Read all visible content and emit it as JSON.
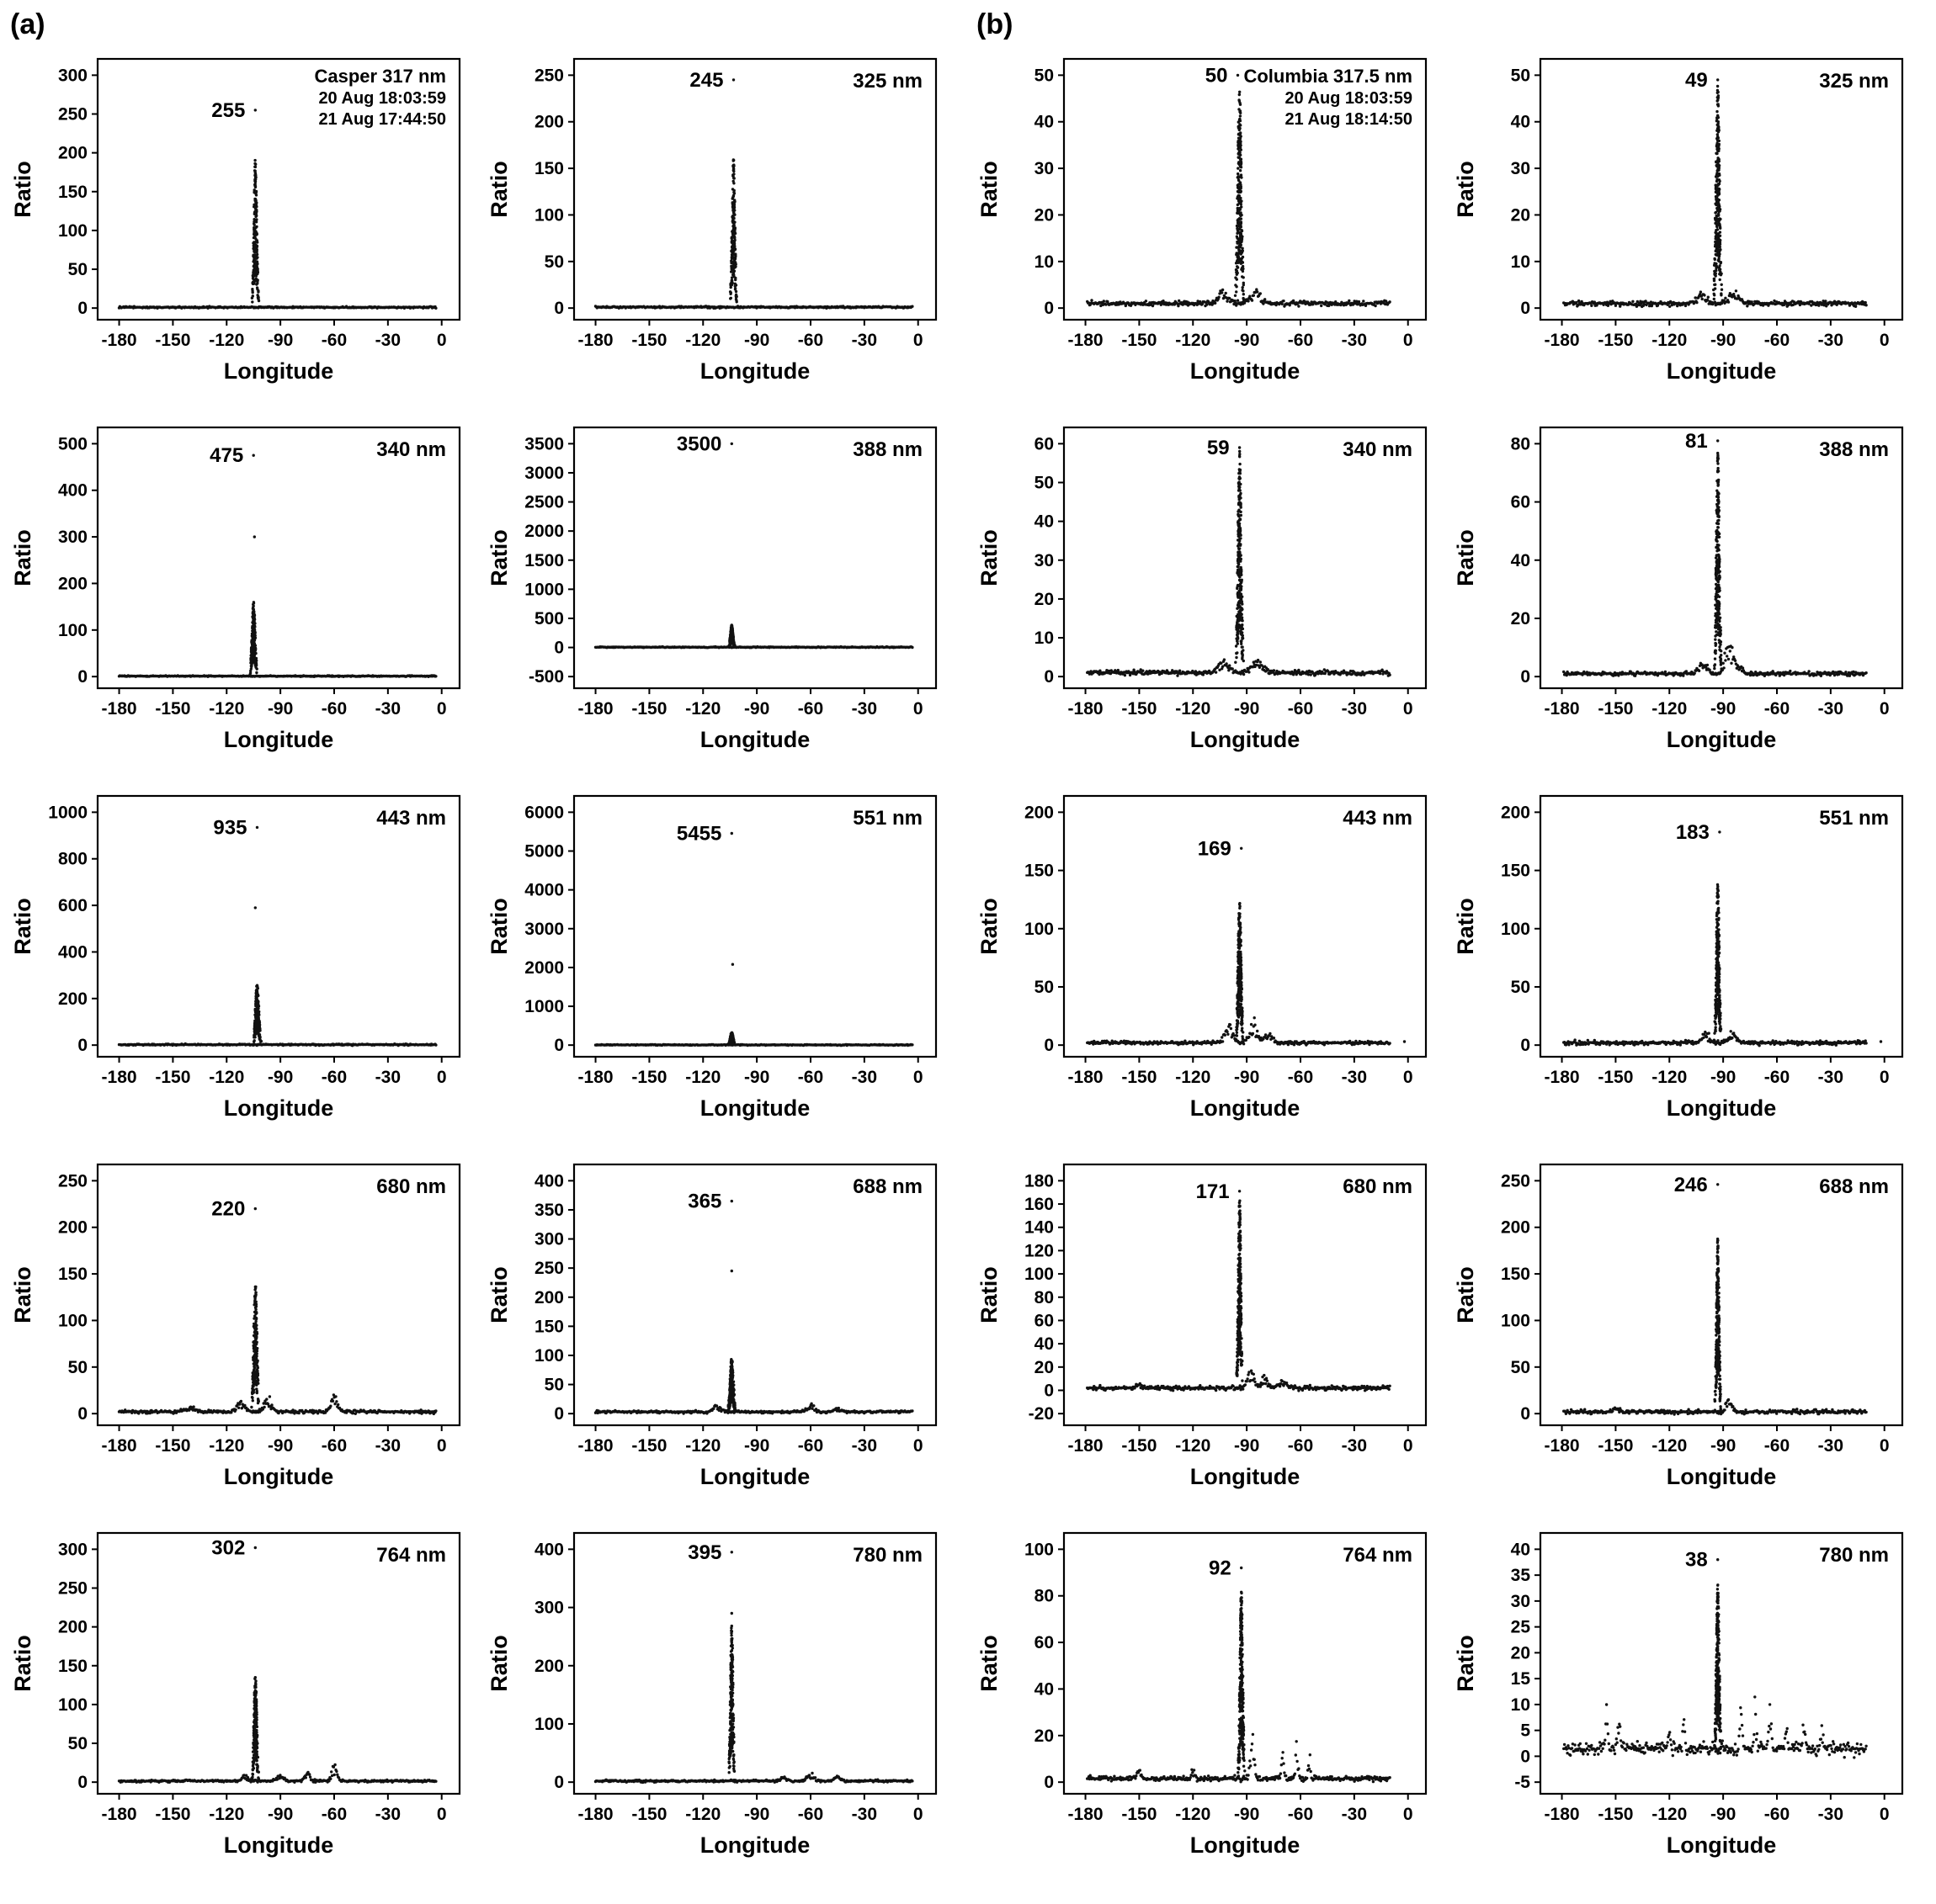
{
  "figure": {
    "panel_a_label": "(a)",
    "panel_b_label": "(b)",
    "xlabel": "Longitude",
    "ylabel": "Ratio",
    "xticks": [
      -180,
      -150,
      -120,
      -90,
      -60,
      -30,
      0
    ],
    "xlim": [
      -192,
      10
    ],
    "point_color": "#111111"
  },
  "chart_data": [
    {
      "panel": "a",
      "type": "scatter",
      "title_lines": [
        "Casper 317 nm",
        "20 Aug 18:03:59",
        "21 Aug 17:44:50"
      ],
      "peak_label": "255",
      "peak": {
        "lon": -104,
        "value": 255
      },
      "spike": {
        "lon": -104,
        "top": 190,
        "width": 2.2
      },
      "baseline": 1,
      "noise": 1.3,
      "yticks": [
        0,
        50,
        100,
        150,
        200,
        250,
        300
      ]
    },
    {
      "panel": "a",
      "type": "scatter",
      "label": "325 nm",
      "peak_label": "245",
      "peak": {
        "lon": -103,
        "value": 245
      },
      "spike": {
        "lon": -103,
        "top": 158,
        "width": 2.2
      },
      "baseline": 1,
      "noise": 1.2,
      "yticks": [
        0,
        50,
        100,
        150,
        200,
        250
      ]
    },
    {
      "panel": "a",
      "type": "scatter",
      "label": "340 nm",
      "peak_label": "475",
      "peak": {
        "lon": -105,
        "value": 475
      },
      "outliers": [
        {
          "lon": -104.5,
          "value": 300
        }
      ],
      "spike": {
        "lon": -105,
        "top": 160,
        "width": 2.4
      },
      "baseline": 1,
      "noise": 1.5,
      "yticks": [
        0,
        100,
        200,
        300,
        400,
        500
      ]
    },
    {
      "panel": "a",
      "type": "scatter",
      "label": "388 nm",
      "peak_label": "3500",
      "peak": {
        "lon": -104,
        "value": 3500
      },
      "spike": {
        "lon": -104,
        "top": 380,
        "width": 2.0
      },
      "baseline": 5,
      "noise": 10,
      "yticks": [
        -500,
        0,
        500,
        1000,
        1500,
        2000,
        2500,
        3000,
        3500
      ]
    },
    {
      "panel": "a",
      "type": "scatter",
      "label": "443 nm",
      "peak_label": "935",
      "peak": {
        "lon": -103,
        "value": 935
      },
      "outliers": [
        {
          "lon": -104,
          "value": 590
        }
      ],
      "spike": {
        "lon": -103,
        "top": 260,
        "width": 2.6
      },
      "baseline": 2,
      "noise": 4,
      "yticks": [
        0,
        200,
        400,
        600,
        800,
        1000
      ]
    },
    {
      "panel": "a",
      "type": "scatter",
      "label": "551 nm",
      "peak_label": "5455",
      "peak": {
        "lon": -104,
        "value": 5455
      },
      "outliers": [
        {
          "lon": -103.5,
          "value": 2080
        }
      ],
      "spike": {
        "lon": -104,
        "top": 330,
        "width": 2.2
      },
      "baseline": 5,
      "noise": 15,
      "yticks": [
        0,
        1000,
        2000,
        3000,
        4000,
        5000,
        6000
      ]
    },
    {
      "panel": "a",
      "type": "scatter",
      "label": "680 nm",
      "peak_label": "220",
      "peak": {
        "lon": -104,
        "value": 220
      },
      "spike": {
        "lon": -104,
        "top": 138,
        "width": 2.6
      },
      "baseline": 2,
      "noise": 2.5,
      "bumps": [
        {
          "lon": -112,
          "height": 12,
          "width": 3
        },
        {
          "lon": -97,
          "height": 15,
          "width": 3
        },
        {
          "lon": -60,
          "height": 16,
          "width": 2.5
        },
        {
          "lon": -140,
          "height": 5,
          "width": 4
        }
      ],
      "yticks": [
        0,
        50,
        100,
        150,
        200,
        250
      ]
    },
    {
      "panel": "a",
      "type": "scatter",
      "label": "688 nm",
      "peak_label": "365",
      "peak": {
        "lon": -104,
        "value": 365
      },
      "outliers": [
        {
          "lon": -104,
          "value": 245
        }
      ],
      "spike": {
        "lon": -104,
        "top": 95,
        "width": 2.6
      },
      "baseline": 3,
      "noise": 3,
      "bumps": [
        {
          "lon": -112,
          "height": 10,
          "width": 3
        },
        {
          "lon": -60,
          "height": 12,
          "width": 3
        },
        {
          "lon": -45,
          "height": 6,
          "width": 3
        }
      ],
      "yticks": [
        0,
        50,
        100,
        150,
        200,
        250,
        300,
        350,
        400
      ]
    },
    {
      "panel": "a",
      "type": "scatter",
      "label": "764 nm",
      "peak_label": "302",
      "peak": {
        "lon": -104,
        "value": 302
      },
      "spike": {
        "lon": -104,
        "top": 140,
        "width": 2.2
      },
      "baseline": 1.5,
      "noise": 2,
      "bumps": [
        {
          "lon": -110,
          "height": 8,
          "width": 2
        },
        {
          "lon": -90,
          "height": 8,
          "width": 2.5
        },
        {
          "lon": -75,
          "height": 10,
          "width": 2
        },
        {
          "lon": -60,
          "height": 22,
          "width": 1.8
        }
      ],
      "yticks": [
        0,
        50,
        100,
        150,
        200,
        250,
        300
      ]
    },
    {
      "panel": "a",
      "type": "scatter",
      "label": "780 nm",
      "peak_label": "395",
      "peak": {
        "lon": -104,
        "value": 395
      },
      "outliers": [
        {
          "lon": -104,
          "value": 290
        }
      ],
      "spike": {
        "lon": -104,
        "top": 270,
        "width": 2.0
      },
      "baseline": 2,
      "noise": 2.5,
      "bumps": [
        {
          "lon": -75,
          "height": 8,
          "width": 2
        },
        {
          "lon": -60,
          "height": 14,
          "width": 2.5
        },
        {
          "lon": -45,
          "height": 8,
          "width": 2.5
        }
      ],
      "yticks": [
        0,
        100,
        200,
        300,
        400
      ]
    },
    {
      "panel": "b",
      "type": "scatter",
      "title_lines": [
        "Columbia 317.5 nm",
        "20 Aug 18:03:59",
        "21 Aug 18:14:50"
      ],
      "peak_label": "50",
      "peak": {
        "lon": -95,
        "value": 50
      },
      "spike": {
        "lon": -94,
        "top": 46,
        "width": 2.8
      },
      "baseline": 1,
      "noise": 0.7,
      "bumps": [
        {
          "lon": -103,
          "height": 2.5,
          "width": 4
        },
        {
          "lon": -85,
          "height": 2.5,
          "width": 4
        }
      ],
      "yticks": [
        0,
        10,
        20,
        30,
        40,
        50
      ]
    },
    {
      "panel": "b",
      "type": "scatter",
      "label": "325 nm",
      "peak_label": "49",
      "peak": {
        "lon": -93,
        "value": 49
      },
      "spike": {
        "lon": -93,
        "top": 47,
        "width": 2.8
      },
      "baseline": 1,
      "noise": 0.7,
      "bumps": [
        {
          "lon": -102,
          "height": 2,
          "width": 4
        },
        {
          "lon": -84,
          "height": 2.5,
          "width": 4
        }
      ],
      "yticks": [
        0,
        10,
        20,
        30,
        40,
        50
      ]
    },
    {
      "panel": "b",
      "type": "scatter",
      "label": "340 nm",
      "peak_label": "59",
      "peak": {
        "lon": -94,
        "value": 59
      },
      "spike": {
        "lon": -94,
        "top": 57,
        "width": 2.6
      },
      "baseline": 1,
      "noise": 0.8,
      "bumps": [
        {
          "lon": -103,
          "height": 3,
          "width": 4
        },
        {
          "lon": -84,
          "height": 3,
          "width": 5
        }
      ],
      "yticks": [
        0,
        10,
        20,
        30,
        40,
        50,
        60
      ]
    },
    {
      "panel": "b",
      "type": "scatter",
      "label": "388 nm",
      "peak_label": "81",
      "peak": {
        "lon": -93,
        "value": 81
      },
      "spike": {
        "lon": -93,
        "top": 76,
        "width": 2.4
      },
      "baseline": 1,
      "noise": 1,
      "bumps": [
        {
          "lon": -101,
          "height": 5,
          "width": 3
        },
        {
          "lon": -87,
          "height": 12,
          "width": 2.5
        },
        {
          "lon": -82,
          "height": 4,
          "width": 3
        }
      ],
      "yticks": [
        0,
        20,
        40,
        60,
        80
      ]
    },
    {
      "panel": "b",
      "type": "scatter",
      "label": "443 nm",
      "peak_label": "169",
      "peak": {
        "lon": -93,
        "value": 169
      },
      "spike": {
        "lon": -94,
        "top": 122,
        "width": 2.4
      },
      "baseline": 2,
      "noise": 2,
      "bumps": [
        {
          "lon": -100,
          "height": 15,
          "width": 3
        },
        {
          "lon": -86,
          "height": 18,
          "width": 3
        },
        {
          "lon": -78,
          "height": 8,
          "width": 3
        }
      ],
      "outliers": [
        {
          "lon": -2,
          "value": 3
        }
      ],
      "yticks": [
        0,
        50,
        100,
        150,
        200
      ]
    },
    {
      "panel": "b",
      "type": "scatter",
      "label": "551 nm",
      "peak_label": "183",
      "peak": {
        "lon": -92,
        "value": 183
      },
      "spike": {
        "lon": -93,
        "top": 138,
        "width": 2.2
      },
      "baseline": 2,
      "noise": 2.5,
      "bumps": [
        {
          "lon": -100,
          "height": 8,
          "width": 3
        },
        {
          "lon": -85,
          "height": 10,
          "width": 3
        }
      ],
      "outliers": [
        {
          "lon": -2,
          "value": 3
        }
      ],
      "yticks": [
        0,
        50,
        100,
        150,
        200
      ]
    },
    {
      "panel": "b",
      "type": "scatter",
      "label": "680 nm",
      "peak_label": "171",
      "peak": {
        "lon": -94,
        "value": 171
      },
      "spike": {
        "lon": -94,
        "top": 163,
        "width": 2.0
      },
      "baseline": 2,
      "noise": 2.5,
      "bumps": [
        {
          "lon": -88,
          "height": 15,
          "width": 2.5
        },
        {
          "lon": -80,
          "height": 8,
          "width": 3
        },
        {
          "lon": -70,
          "height": 6,
          "width": 3
        },
        {
          "lon": -150,
          "height": 4,
          "width": 2
        }
      ],
      "yticks": [
        -20,
        0,
        20,
        40,
        60,
        80,
        100,
        120,
        140,
        160,
        180
      ]
    },
    {
      "panel": "b",
      "type": "scatter",
      "label": "688 nm",
      "peak_label": "246",
      "peak": {
        "lon": -93,
        "value": 246
      },
      "spike": {
        "lon": -93,
        "top": 185,
        "width": 2.0
      },
      "baseline": 2,
      "noise": 3,
      "bumps": [
        {
          "lon": -87,
          "height": 12,
          "width": 2.5
        },
        {
          "lon": -150,
          "height": 5,
          "width": 2
        }
      ],
      "yticks": [
        0,
        50,
        100,
        150,
        200,
        250
      ]
    },
    {
      "panel": "b",
      "type": "scatter",
      "label": "764 nm",
      "peak_label": "92",
      "peak": {
        "lon": -93,
        "value": 92
      },
      "spike": {
        "lon": -93,
        "top": 82,
        "width": 2.2
      },
      "baseline": 1.5,
      "noise": 1.5,
      "bumps": [
        {
          "lon": -150,
          "height": 4,
          "width": 1.5
        },
        {
          "lon": -120,
          "height": 4,
          "width": 1.5
        },
        {
          "lon": -87,
          "height": 18,
          "width": 1.5
        },
        {
          "lon": -70,
          "height": 10,
          "width": 1
        },
        {
          "lon": -62,
          "height": 14,
          "width": 1
        },
        {
          "lon": -55,
          "height": 12,
          "width": 0.8
        }
      ],
      "yticks": [
        0,
        20,
        40,
        60,
        80,
        100
      ]
    },
    {
      "panel": "b",
      "type": "scatter",
      "label": "780 nm",
      "peak_label": "38",
      "peak": {
        "lon": -93,
        "value": 38
      },
      "spike": {
        "lon": -93,
        "top": 33,
        "width": 2.2
      },
      "baseline": 1.5,
      "noise": 1.8,
      "bumps": [
        {
          "lon": -155,
          "height": 7,
          "width": 1
        },
        {
          "lon": -148,
          "height": 5,
          "width": 1.2
        },
        {
          "lon": -120,
          "height": 4,
          "width": 1
        },
        {
          "lon": -112,
          "height": 5,
          "width": 0.8
        },
        {
          "lon": -80,
          "height": 8,
          "width": 1
        },
        {
          "lon": -72,
          "height": 10,
          "width": 0.8
        },
        {
          "lon": -64,
          "height": 9,
          "width": 1
        },
        {
          "lon": -55,
          "height": 6,
          "width": 1
        },
        {
          "lon": -45,
          "height": 5,
          "width": 1.2
        },
        {
          "lon": -35,
          "height": 4,
          "width": 1
        }
      ],
      "yticks": [
        -5,
        0,
        5,
        10,
        15,
        20,
        25,
        30,
        35,
        40
      ]
    }
  ]
}
